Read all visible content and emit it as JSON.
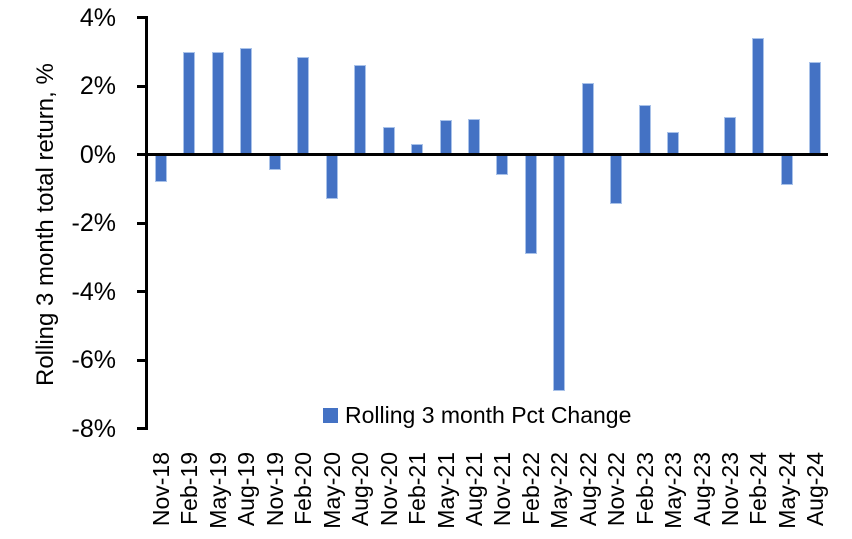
{
  "chart": {
    "background_color": "#FFFFFF",
    "axis_color": "#000000",
    "text_color": "#000000"
  },
  "y_axis": {
    "title": "Rolling 3 month total return, %",
    "tick_labels": [
      "4%",
      "2%",
      "0%",
      "-2%",
      "-4%",
      "-6%",
      "-8%"
    ],
    "tick_values": [
      4,
      2,
      0,
      -2,
      -4,
      -6,
      -8
    ]
  },
  "legend": {
    "label": "Rolling 3 month Pct Change",
    "swatch_color": "#4472C4"
  },
  "chart_data": {
    "type": "bar",
    "title": "",
    "xlabel": "",
    "ylabel": "Rolling 3 month total return, %",
    "ylim": [
      -8,
      4
    ],
    "ytick_step": 2,
    "grid": false,
    "legend_entries": [
      "Rolling 3 month Pct Change"
    ],
    "legend_position": "bottom-center-inside",
    "bar_color": "#4472C4",
    "bar_border_color": "#A9C2E9",
    "categories": [
      "Nov-18",
      "Feb-19",
      "May-19",
      "Aug-19",
      "Nov-19",
      "Feb-20",
      "May-20",
      "Aug-20",
      "Nov-20",
      "Feb-21",
      "May-21",
      "Aug-21",
      "Nov-21",
      "Feb-22",
      "May-22",
      "Aug-22",
      "Nov-22",
      "Feb-23",
      "May-23",
      "Aug-23",
      "Nov-23",
      "Feb-24",
      "May-24",
      "Aug-24"
    ],
    "values": [
      -0.8,
      3.0,
      3.0,
      3.1,
      -0.45,
      2.85,
      -1.3,
      2.6,
      0.8,
      0.3,
      1.0,
      1.05,
      -0.6,
      -2.9,
      -6.9,
      2.1,
      -1.45,
      1.45,
      0.65,
      0,
      1.1,
      3.4,
      -0.9,
      2.7
    ]
  }
}
